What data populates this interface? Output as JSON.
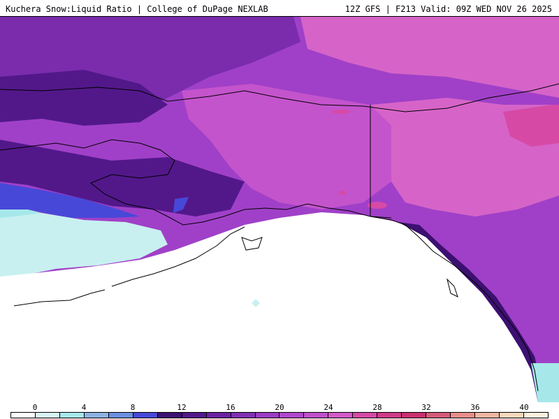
{
  "header": {
    "left_title": "Kuchera Snow:Liquid Ratio | College of DuPage NEXLAB",
    "right_title": "12Z GFS | F213 Valid: 09Z WED NOV 26 2025"
  },
  "legend": {
    "tick_labels": [
      "0",
      "4",
      "8",
      "12",
      "16",
      "20",
      "24",
      "28",
      "32",
      "36",
      "40"
    ],
    "colors": [
      "#ffffff",
      "#d8f4f4",
      "#a6e8ea",
      "#8db3e2",
      "#6b8fe0",
      "#4848d8",
      "#3c1070",
      "#52188a",
      "#6a22a2",
      "#8030b4",
      "#9a3cc4",
      "#b048cc",
      "#c050cc",
      "#d25ac8",
      "#d64aa6",
      "#cf3a88",
      "#c9306e",
      "#d65a7a",
      "#e88e8a",
      "#f1b6a2",
      "#f7d8bc",
      "#fdf0dc"
    ]
  },
  "map": {
    "colors": {
      "ocean_no_snow": "#ffffff",
      "low_ratio_cyan": "#c8f0f0",
      "light_cyan": "#a6e8ea",
      "blue": "#4848d8",
      "deep_purple": "#52188a",
      "purple": "#7a2cac",
      "violet": "#a040c8",
      "orchid": "#c454cc",
      "magenta": "#d664c8",
      "pink_magenta": "#d64aa6",
      "outline": "#000000"
    }
  }
}
